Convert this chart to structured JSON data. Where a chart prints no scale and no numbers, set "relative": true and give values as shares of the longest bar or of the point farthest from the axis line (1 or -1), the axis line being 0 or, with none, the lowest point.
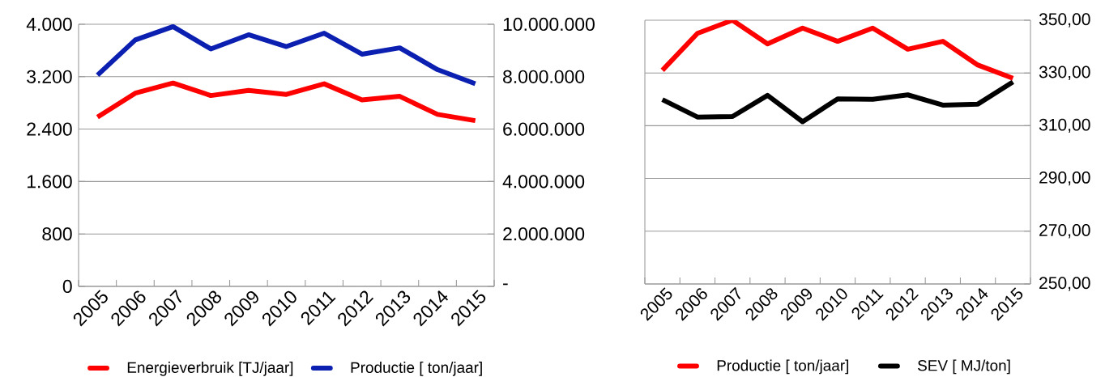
{
  "chart_data": [
    {
      "type": "line",
      "categories": [
        "2005",
        "2006",
        "2007",
        "2008",
        "2009",
        "2010",
        "2011",
        "2012",
        "2013",
        "2014",
        "2015"
      ],
      "series": [
        {
          "name": "Energieverbruik [TJ/jaar]",
          "color": "#ff0000",
          "axis": "y",
          "values": [
            2583,
            2948,
            3103,
            2912,
            2990,
            2930,
            3091,
            2846,
            2900,
            2625,
            2529
          ]
        },
        {
          "name": "Productie [ ton/jaar]",
          "color": "#0b20b0",
          "axis": "y2",
          "values": [
            8060000,
            9400000,
            9910000,
            9060000,
            9600000,
            9150000,
            9660000,
            8860000,
            9100000,
            8270000,
            7730000
          ]
        }
      ],
      "ylim": [
        0,
        4000
      ],
      "yticks": [
        {
          "value": 0,
          "label": "0"
        },
        {
          "value": 800,
          "label": "800"
        },
        {
          "value": 1600,
          "label": "1.600"
        },
        {
          "value": 2400,
          "label": "2.400"
        },
        {
          "value": 3200,
          "label": "3.200"
        },
        {
          "value": 4000,
          "label": "4.000"
        }
      ],
      "y2lim": [
        0,
        10000000
      ],
      "y2ticks": [
        {
          "value": 0,
          "label": "-"
        },
        {
          "value": 2000000,
          "label": "2.000.000"
        },
        {
          "value": 4000000,
          "label": "4.000.000"
        },
        {
          "value": 6000000,
          "label": "6.000.000"
        },
        {
          "value": 8000000,
          "label": "8.000.000"
        },
        {
          "value": 10000000,
          "label": "10.000.000"
        }
      ],
      "grid": "y",
      "legend": "bottom",
      "line_style": "solid",
      "marker": "none"
    },
    {
      "type": "line",
      "categories": [
        "2005",
        "2006",
        "2007",
        "2008",
        "2009",
        "2010",
        "2011",
        "2012",
        "2013",
        "2014",
        "2015"
      ],
      "series": [
        {
          "name": "SEV [ MJ/ton]",
          "color": "#000000",
          "values": [
            319.9,
            313.3,
            313.5,
            321.5,
            311.5,
            320.2,
            320.0,
            321.7,
            317.8,
            318.2,
            326.6
          ]
        }
      ],
      "ylim": [
        250,
        350
      ],
      "yticks": [
        {
          "value": 250,
          "label": "250,00"
        },
        {
          "value": 270,
          "label": "270,00"
        },
        {
          "value": 290,
          "label": "290,00"
        },
        {
          "value": 310,
          "label": "310,00"
        },
        {
          "value": 330,
          "label": "330,00"
        },
        {
          "value": 350,
          "label": "350,00"
        }
      ],
      "grid": "y",
      "legend": "bottom",
      "line_style": "solid",
      "marker": "none"
    },
    {
      "type": "line",
      "relative": true,
      "categories": [
        null,
        null,
        null,
        null,
        null,
        null,
        null,
        null,
        null,
        null,
        null
      ],
      "series": [
        {
          "name": "Productie [ ton/jaar]",
          "color": "#ff0000",
          "values": [
            0.81,
            0.95,
            1,
            0.91,
            0.97,
            0.92,
            0.97,
            0.89,
            0.92,
            0.83,
            0.78
          ]
        }
      ],
      "legend": "bottom",
      "line_style": "solid",
      "marker": "none"
    }
  ]
}
